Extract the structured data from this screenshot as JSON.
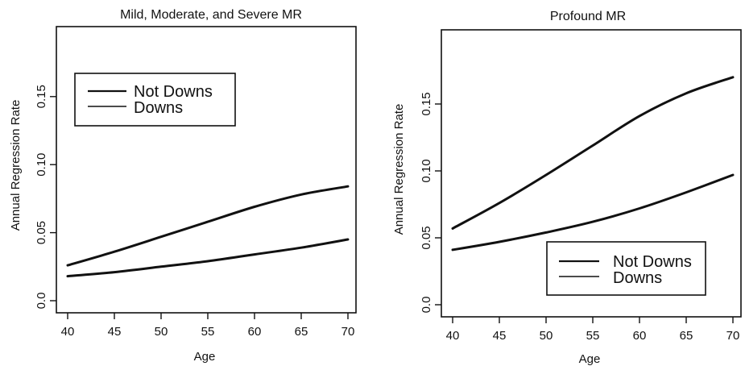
{
  "chart_data": [
    {
      "type": "line",
      "title": "Mild, Moderate, and Severe MR",
      "xlabel": "Age",
      "ylabel": "Annual Regression Rate",
      "xlim": [
        40,
        70
      ],
      "ylim": [
        0.0,
        0.17
      ],
      "xticks": [
        "40",
        "45",
        "50",
        "55",
        "60",
        "65",
        "70"
      ],
      "yticks": [
        "0.0",
        "0.05",
        "0.10",
        "0.15"
      ],
      "grid": false,
      "legend_position": "top-left",
      "legend": [
        "Not Downs",
        "Downs"
      ],
      "series": [
        {
          "x": [
            40,
            45,
            50,
            55,
            60,
            65,
            70
          ],
          "y": [
            0.026,
            0.036,
            0.047,
            0.058,
            0.069,
            0.078,
            0.084
          ]
        },
        {
          "x": [
            40,
            45,
            50,
            55,
            60,
            65,
            70
          ],
          "y": [
            0.018,
            0.021,
            0.025,
            0.029,
            0.034,
            0.039,
            0.045
          ]
        }
      ]
    },
    {
      "type": "line",
      "title": "Profound MR",
      "xlabel": "Age",
      "ylabel": "Annual Regression Rate",
      "xlim": [
        40,
        70
      ],
      "ylim": [
        0.0,
        0.18
      ],
      "xticks": [
        "40",
        "45",
        "50",
        "55",
        "60",
        "65",
        "70"
      ],
      "yticks": [
        "0.0",
        "0.05",
        "0.10",
        "0.15"
      ],
      "grid": false,
      "legend_position": "bottom-right",
      "legend": [
        "Not Downs",
        "Downs"
      ],
      "series": [
        {
          "x": [
            40,
            45,
            50,
            55,
            60,
            65,
            70
          ],
          "y": [
            0.057,
            0.076,
            0.097,
            0.119,
            0.141,
            0.158,
            0.17
          ]
        },
        {
          "x": [
            40,
            45,
            50,
            55,
            60,
            65,
            70
          ],
          "y": [
            0.041,
            0.047,
            0.054,
            0.062,
            0.072,
            0.084,
            0.097
          ]
        }
      ]
    }
  ]
}
